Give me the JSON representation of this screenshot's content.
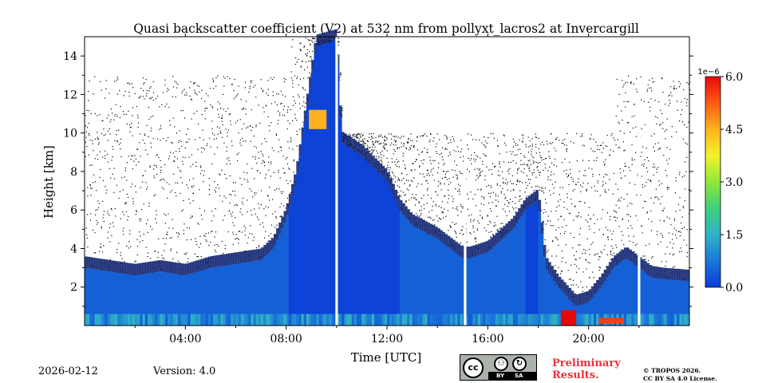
{
  "chart_data": {
    "type": "heatmap",
    "title": "Quasi backscatter coefficient (V2) at 532 nm from pollyxt_lacros2 at Invercargill",
    "xlabel": "Time [UTC]",
    "ylabel": "Height [km]",
    "x_range_hours": [
      0,
      24
    ],
    "ylim": [
      0,
      15
    ],
    "x_ticks": [
      {
        "value": 4,
        "label": "04:00"
      },
      {
        "value": 8,
        "label": "08:00"
      },
      {
        "value": 12,
        "label": "12:00"
      },
      {
        "value": 16,
        "label": "16:00"
      },
      {
        "value": 20,
        "label": "20:00"
      }
    ],
    "x_minor_ticks": [
      2,
      6,
      10,
      14,
      18,
      22
    ],
    "y_ticks": [
      {
        "value": 2,
        "label": "2"
      },
      {
        "value": 4,
        "label": "4"
      },
      {
        "value": 6,
        "label": "6"
      },
      {
        "value": 8,
        "label": "8"
      },
      {
        "value": 10,
        "label": "10"
      },
      {
        "value": 12,
        "label": "12"
      },
      {
        "value": 14,
        "label": "14"
      }
    ],
    "y_minor_ticks": [
      1,
      3,
      5,
      7,
      9,
      11,
      13
    ],
    "colorbar": {
      "exponent_label": "1e−6",
      "range": [
        0.0,
        6.0
      ],
      "ticks": [
        {
          "value": 0.0,
          "label": "0.0"
        },
        {
          "value": 1.5,
          "label": "1.5"
        },
        {
          "value": 3.0,
          "label": "3.0"
        },
        {
          "value": 4.5,
          "label": "4.5"
        },
        {
          "value": 6.0,
          "label": "6.0"
        }
      ],
      "colormap": [
        "#0b3bd6",
        "#1b78d8",
        "#2fb2c8",
        "#3fd07a",
        "#8fe83a",
        "#f2f22a",
        "#ffb21f",
        "#ff5a14",
        "#e50a0a"
      ]
    },
    "profile_top_km": [
      [
        0.0,
        3.0
      ],
      [
        1.0,
        2.8
      ],
      [
        2.0,
        2.6
      ],
      [
        3.0,
        2.8
      ],
      [
        4.0,
        2.6
      ],
      [
        5.0,
        3.0
      ],
      [
        6.0,
        3.2
      ],
      [
        7.0,
        3.4
      ],
      [
        7.5,
        4.0
      ],
      [
        8.0,
        5.5
      ],
      [
        8.4,
        7.5
      ],
      [
        8.8,
        11.0
      ],
      [
        9.2,
        14.5
      ],
      [
        10.0,
        14.8
      ],
      [
        10.2,
        9.5
      ],
      [
        11.0,
        8.8
      ],
      [
        12.0,
        7.5
      ],
      [
        12.5,
        6.0
      ],
      [
        13.0,
        5.2
      ],
      [
        14.0,
        4.5
      ],
      [
        15.0,
        3.5
      ],
      [
        15.3,
        3.5
      ],
      [
        16.0,
        3.8
      ],
      [
        17.0,
        5.0
      ],
      [
        17.5,
        6.0
      ],
      [
        18.0,
        6.5
      ],
      [
        18.3,
        3.0
      ],
      [
        18.8,
        2.0
      ],
      [
        19.5,
        1.0
      ],
      [
        20.0,
        1.2
      ],
      [
        20.5,
        2.0
      ],
      [
        21.0,
        3.0
      ],
      [
        21.5,
        3.5
      ],
      [
        22.0,
        3.0
      ],
      [
        22.5,
        2.5
      ],
      [
        23.0,
        2.4
      ],
      [
        24.0,
        2.3
      ]
    ],
    "data_gaps_hours": [
      [
        9.95,
        10.05
      ],
      [
        15.05,
        15.15
      ],
      [
        21.95,
        22.05
      ]
    ],
    "near_surface_layer": {
      "max_km": 0.6,
      "value_range_e6": [
        0.4,
        1.6
      ]
    },
    "aerosol_layer": {
      "typical_value_e6": 0.3
    },
    "cloud_signal": [
      {
        "time_h": [
          8.9,
          9.6
        ],
        "height_km": [
          10.2,
          11.2
        ],
        "value_e6": 4.5
      },
      {
        "time_h": [
          18.9,
          19.5
        ],
        "height_km": [
          0.0,
          0.8
        ],
        "value_e6": 6.0
      },
      {
        "time_h": [
          20.4,
          21.4
        ],
        "height_km": [
          0.1,
          0.4
        ],
        "value_e6": 5.5
      }
    ]
  },
  "footer": {
    "date": "2026-02-12",
    "version": "Version: 4.0",
    "preliminary_line1": "Preliminary",
    "preliminary_line2": "Results.",
    "copyright_line1": "© TROPOS 2026.",
    "copyright_line2": "CC BY SA 4.0 License.",
    "cc_mark": "cc",
    "cc_by": "BY",
    "cc_sa": "SA"
  },
  "colors": {
    "preliminary": "#e8333a",
    "gap": "#ffffff"
  }
}
